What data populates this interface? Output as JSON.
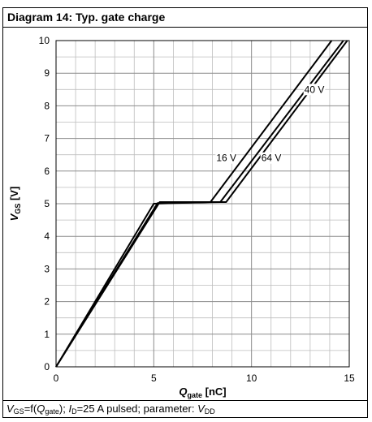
{
  "title": "Diagram 14: Typ. gate charge",
  "caption": {
    "v_gs": "V",
    "v_gs_sub": "GS",
    "eq": "=f(",
    "q": "Q",
    "q_sub": "gate",
    "mid": "); ",
    "i": "I",
    "i_sub": "D",
    "rest": "=25 A pulsed; parameter: ",
    "v": "V",
    "v_sub": "DD"
  },
  "axes": {
    "x_label_main": "Q",
    "x_label_sub": "gate",
    "x_label_unit": " [nC]",
    "y_label_main": "V",
    "y_label_sub": "GS",
    "y_label_unit": " [V]"
  },
  "chart_data": {
    "type": "line",
    "xlim": [
      0,
      15
    ],
    "ylim": [
      0,
      10
    ],
    "x_major_ticks": [
      0,
      5,
      10,
      15
    ],
    "y_major_ticks": [
      0,
      1,
      2,
      3,
      4,
      5,
      6,
      7,
      8,
      9,
      10
    ],
    "x_minor_step": 1,
    "y_minor_step": 0.5,
    "grid": true,
    "series": [
      {
        "name": "16 V",
        "label_at": [
          8.2,
          6.3
        ],
        "x": [
          0,
          5.0,
          7.9,
          14.1
        ],
        "y": [
          0,
          5.0,
          5.05,
          10.0
        ]
      },
      {
        "name": "40 V",
        "label_at": [
          12.7,
          8.4
        ],
        "x": [
          0,
          5.2,
          8.4,
          14.7
        ],
        "y": [
          0,
          5.02,
          5.05,
          10.0
        ]
      },
      {
        "name": "64 V",
        "label_at": [
          10.5,
          6.3
        ],
        "x": [
          0,
          5.3,
          8.7,
          14.9
        ],
        "y": [
          0,
          5.05,
          5.05,
          10.0
        ]
      }
    ]
  }
}
